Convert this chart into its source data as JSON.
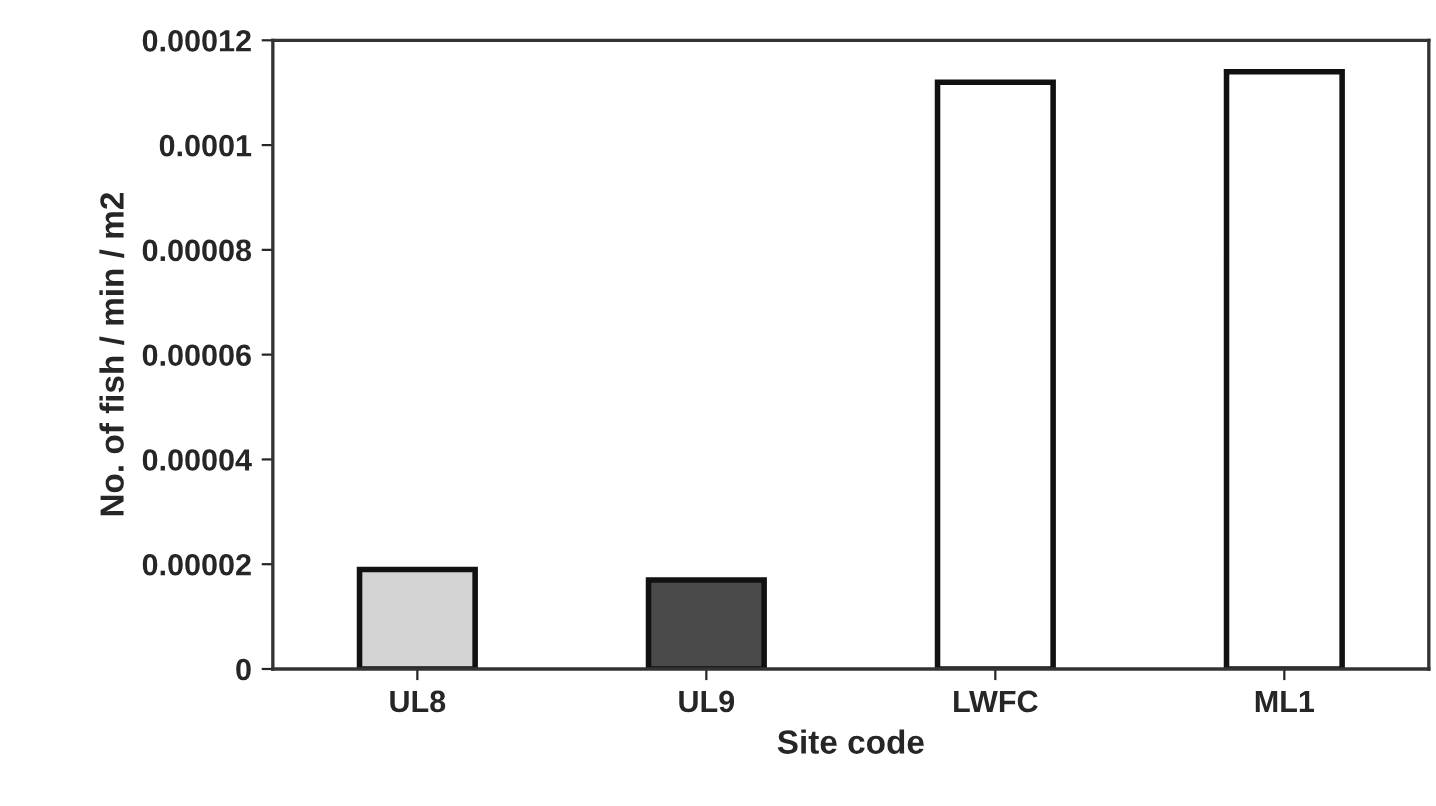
{
  "chart_data": {
    "type": "bar",
    "xlabel": "Site code",
    "ylabel": "No. of fish / min / m2",
    "categories": [
      "UL8",
      "UL9",
      "LWFC",
      "ML1"
    ],
    "values": [
      1.9e-05,
      1.7e-05,
      0.000112,
      0.000114
    ],
    "colors": [
      "#d4d4d4",
      "#4a4a4a",
      "#ffffff",
      "#ffffff"
    ],
    "ylim": [
      0,
      0.00012
    ],
    "yticks": [
      {
        "value": 0,
        "label": "0"
      },
      {
        "value": 2e-05,
        "label": "0.00002"
      },
      {
        "value": 4e-05,
        "label": "0.00004"
      },
      {
        "value": 6e-05,
        "label": "0.00006"
      },
      {
        "value": 8e-05,
        "label": "0.00008"
      },
      {
        "value": 0.0001,
        "label": "0.0001"
      },
      {
        "value": 0.00012,
        "label": "0.00012"
      }
    ],
    "grid": false
  }
}
